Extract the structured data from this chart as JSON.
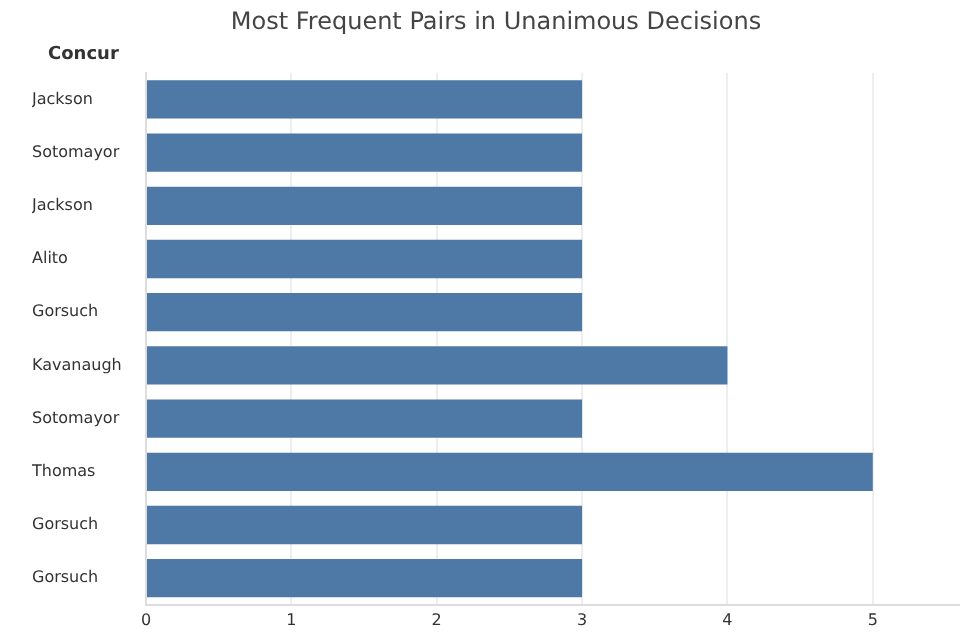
{
  "chart_data": {
    "type": "bar",
    "orientation": "horizontal",
    "title": "Most Frequent Pairs in Unanimous Decisions",
    "ylabel": "Concur",
    "categories": [
      "Jackson",
      "Sotomayor",
      "Jackson",
      "Alito",
      "Gorsuch",
      "Kavanaugh",
      "Sotomayor",
      "Thomas",
      "Gorsuch",
      "Gorsuch"
    ],
    "values": [
      3,
      3,
      3,
      3,
      3,
      4,
      3,
      5,
      3,
      3
    ],
    "color": "#4e79a7",
    "xlim": [
      0,
      5.6
    ],
    "xticks": [
      0,
      1,
      2,
      3,
      4,
      5
    ],
    "grid": "x",
    "legend": false
  }
}
